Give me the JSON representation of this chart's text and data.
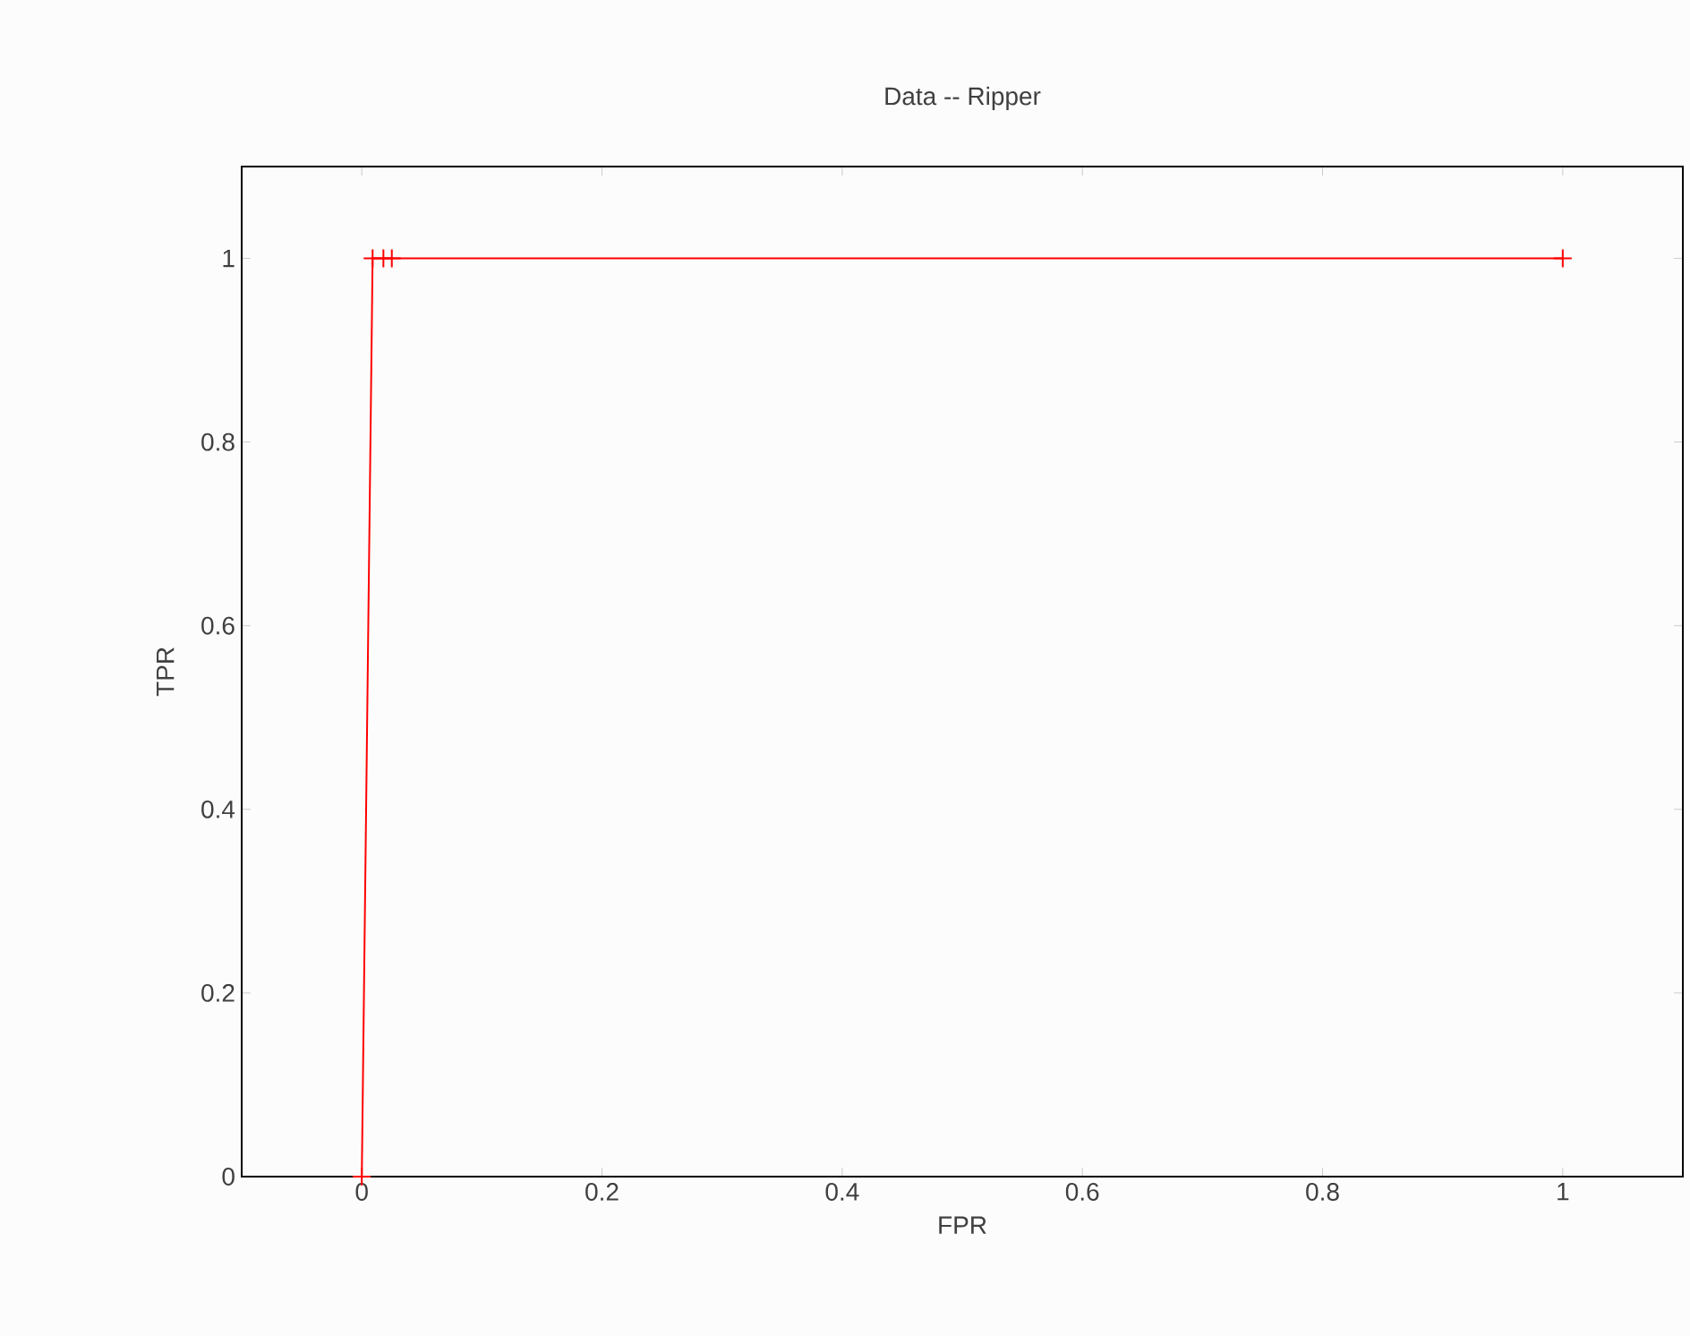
{
  "chart_data": {
    "type": "line",
    "title": "Data -- Ripper",
    "xlabel": "FPR",
    "ylabel": "TPR",
    "x": [
      0,
      0.009,
      0.018,
      0.025,
      1
    ],
    "series": [
      {
        "color": "#ff0000",
        "values": [
          0,
          1,
          1,
          1,
          1
        ]
      }
    ],
    "xlim": [
      -0.1,
      1.1
    ],
    "ylim": [
      0,
      1.1
    ],
    "xticks": [
      0,
      0.2,
      0.4,
      0.6,
      0.8,
      1
    ],
    "yticks": [
      0,
      0.2,
      0.4,
      0.6,
      0.8,
      1
    ],
    "marker": "cross",
    "line_style": "solid",
    "grid": false
  }
}
